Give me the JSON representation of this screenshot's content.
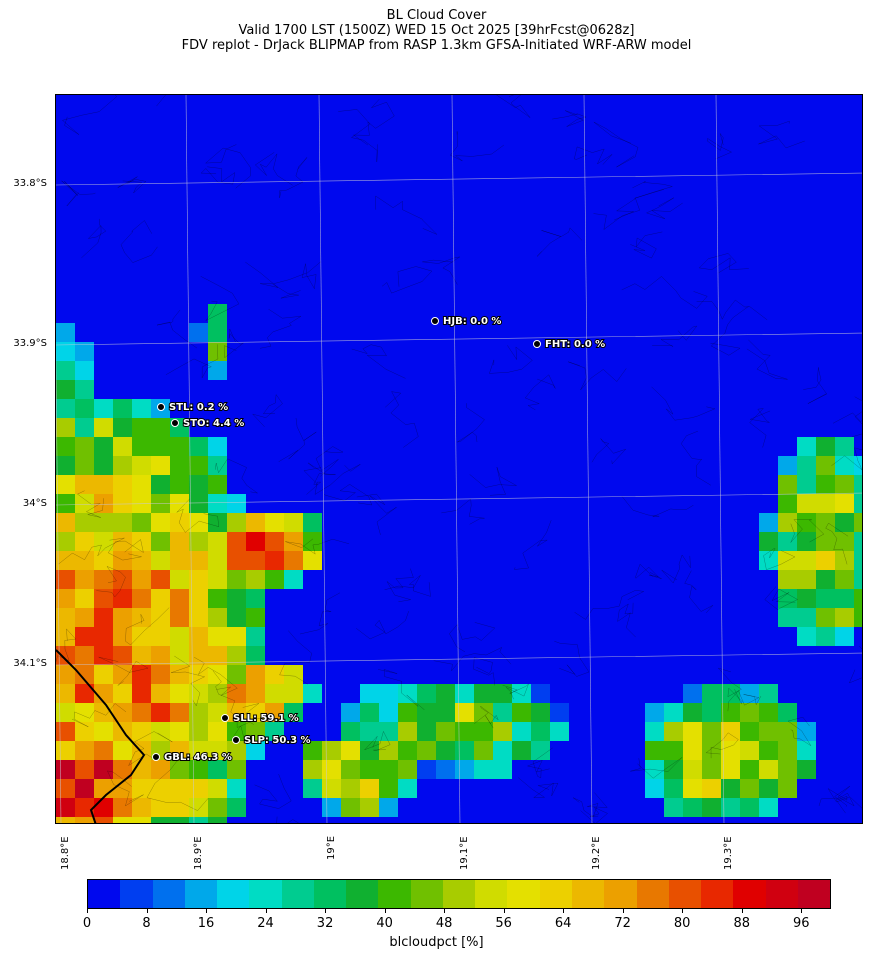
{
  "title": {
    "line1": "BL Cloud Cover",
    "line2": "Valid 1700 LST (1500Z) WED 15 Oct 2025 [39hrFcst@0628z]",
    "line3": "FDV replot - DrJack BLIPMAP from RASP 1.3km GFSA-Initiated WRF-ARW model"
  },
  "lat_labels": [
    "33.8°S",
    "33.9°S",
    "34°S",
    "34.1°S"
  ],
  "lon_labels": [
    "18.8°E",
    "18.9°E",
    "19°E",
    "19.1°E",
    "19.2°E",
    "19.3°E"
  ],
  "stations": [
    {
      "code": "HJB",
      "value": "0.0 %",
      "label": "HJB: 0.0 %"
    },
    {
      "code": "FHT",
      "value": "0.0 %",
      "label": "FHT: 0.0 %"
    },
    {
      "code": "STL",
      "value": "0.2 %",
      "label": "STL: 0.2 %"
    },
    {
      "code": "STO",
      "value": "4.4 %",
      "label": "STO: 4.4 %"
    },
    {
      "code": "SLL",
      "value": "59.1 %",
      "label": "SLL: 59.1 %"
    },
    {
      "code": "SLP",
      "value": "50.3 %",
      "label": "SLP: 50.3 %"
    },
    {
      "code": "GBL",
      "value": "46.3 %",
      "label": "GBL: 46.3 %"
    }
  ],
  "colorbar": {
    "label": "blcloudpct [%]",
    "ticks": [
      "0",
      "8",
      "16",
      "24",
      "32",
      "40",
      "48",
      "56",
      "64",
      "72",
      "80",
      "88",
      "96"
    ],
    "colors": [
      "#0008ee",
      "#003ef0",
      "#0070ee",
      "#00a8ea",
      "#00d4e8",
      "#00dcc4",
      "#00cc90",
      "#00c060",
      "#10b030",
      "#3cb800",
      "#70c000",
      "#a8cc00",
      "#d0dc00",
      "#e4e000",
      "#ecd000",
      "#ecb800",
      "#eca000",
      "#e87800",
      "#e85000",
      "#e82800",
      "#e00000",
      "#d00010",
      "#c00020"
    ]
  },
  "colors": {
    "background_low": "#0008ee",
    "station_text": "#ffffff",
    "coast_line": "#000000"
  }
}
